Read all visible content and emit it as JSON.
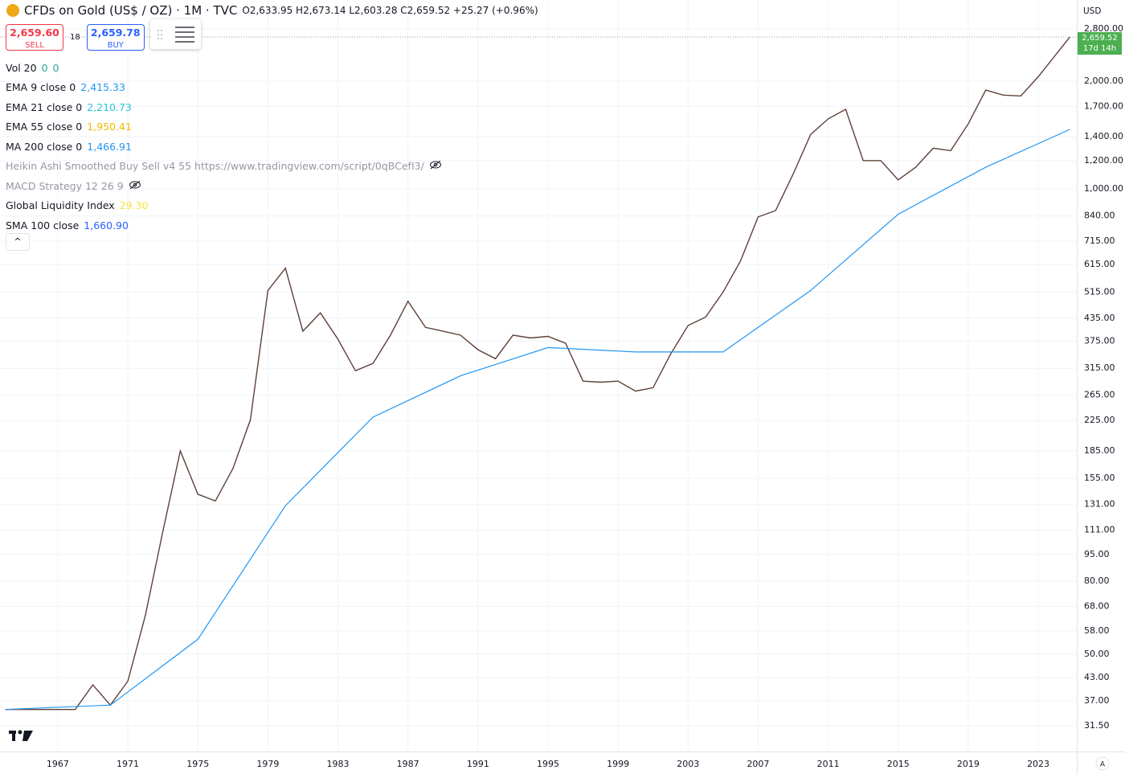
{
  "header": {
    "symbol": "CFDs on Gold (US$ / OZ) · 1M · TVC",
    "ohlc": "O2,633.95 H2,673.14 L2,603.28 C2,659.52 +25.27 (+0.96%)"
  },
  "trade": {
    "sell_price": "2,659.60",
    "sell": "SELL",
    "spread": "18",
    "buy_price": "2,659.78",
    "buy": "BUY"
  },
  "indicators": [
    {
      "name": "Vol 20",
      "values": [
        "0",
        "0"
      ],
      "color": "#26a69a"
    },
    {
      "name": "EMA 9 close 0",
      "values": [
        "2,415.33"
      ],
      "color": "#2196f3"
    },
    {
      "name": "EMA 21 close 0",
      "values": [
        "2,210.73"
      ],
      "color": "#26c6da"
    },
    {
      "name": "EMA 55 close 0",
      "values": [
        "1,950.41"
      ],
      "color": "#f5b800"
    },
    {
      "name": "MA 200 close 0",
      "values": [
        "1,466.91"
      ],
      "color": "#2196f3"
    },
    {
      "name": "Heikin Ashi Smoothed Buy Sell v4 55 https://www.tradingview.com/script/0qBCefI3/",
      "hidden": true
    },
    {
      "name": "MACD Strategy 12 26 9",
      "hidden": true
    },
    {
      "name": "Global Liquidity Index",
      "values": [
        "29.30"
      ],
      "color": "#f5e33d"
    },
    {
      "name": "SMA 100 close",
      "values": [
        "1,660.90"
      ],
      "color": "#2962ff"
    }
  ],
  "price_axis": {
    "currency": "USD",
    "last_label": "2,659.52",
    "countdown": "17d 14h"
  },
  "chart_data": {
    "type": "line",
    "log_scale": true,
    "grid": true,
    "xlim": [
      1963.7,
      2025.2
    ],
    "ylim": [
      26.7,
      3376
    ],
    "xticks": [
      1967,
      1971,
      1975,
      1979,
      1983,
      1987,
      1991,
      1995,
      1999,
      2003,
      2007,
      2011,
      2015,
      2019,
      2023
    ],
    "yticks": [
      {
        "value": 2800,
        "label": "2,800.00"
      },
      {
        "value": 2000,
        "label": "2,000.00"
      },
      {
        "value": 1700,
        "label": "1,700.00"
      },
      {
        "value": 1400,
        "label": "1,400.00"
      },
      {
        "value": 1200,
        "label": "1,200.00"
      },
      {
        "value": 1000,
        "label": "1,000.00"
      },
      {
        "value": 840,
        "label": "840.00"
      },
      {
        "value": 715,
        "label": "715.00"
      },
      {
        "value": 615,
        "label": "615.00"
      },
      {
        "value": 515,
        "label": "515.00"
      },
      {
        "value": 435,
        "label": "435.00"
      },
      {
        "value": 375,
        "label": "375.00"
      },
      {
        "value": 315,
        "label": "315.00"
      },
      {
        "value": 265,
        "label": "265.00"
      },
      {
        "value": 225,
        "label": "225.00"
      },
      {
        "value": 185,
        "label": "185.00"
      },
      {
        "value": 155,
        "label": "155.00"
      },
      {
        "value": 131,
        "label": "131.00"
      },
      {
        "value": 111,
        "label": "111.00"
      },
      {
        "value": 95,
        "label": "95.00"
      },
      {
        "value": 80,
        "label": "80.00"
      },
      {
        "value": 68,
        "label": "68.00"
      },
      {
        "value": 58,
        "label": "58.00"
      },
      {
        "value": 50,
        "label": "50.00"
      },
      {
        "value": 43,
        "label": "43.00"
      },
      {
        "value": 37,
        "label": "37.00"
      },
      {
        "value": 31.5,
        "label": "31.50"
      }
    ],
    "series": [
      {
        "color": "#5d4037",
        "x": [
          1964,
          1968,
          1969,
          1970,
          1971,
          1972,
          1973,
          1974,
          1975,
          1976,
          1977,
          1978,
          1979,
          1980,
          1981,
          1982,
          1983,
          1984,
          1985,
          1986,
          1987,
          1988,
          1989,
          1990,
          1991,
          1992,
          1993,
          1994,
          1995,
          1996,
          1997,
          1998,
          1999,
          2000,
          2001,
          2002,
          2003,
          2004,
          2005,
          2006,
          2007,
          2008,
          2009,
          2010,
          2011,
          2012,
          2013,
          2014,
          2015,
          2016,
          2017,
          2018,
          2019,
          2020,
          2021,
          2022,
          2023,
          2024.8
        ],
        "values": [
          35,
          35,
          41,
          36,
          42,
          64,
          110,
          185,
          140,
          134,
          165,
          226,
          520,
          600,
          400,
          450,
          380,
          310,
          325,
          390,
          485,
          410,
          400,
          390,
          355,
          335,
          390,
          383,
          387,
          370,
          290,
          288,
          290,
          272,
          278,
          345,
          415,
          438,
          515,
          630,
          835,
          870,
          1100,
          1420,
          1570,
          1670,
          1200,
          1200,
          1060,
          1150,
          1300,
          1280,
          1520,
          1890,
          1830,
          1820,
          2060,
          2659.52
        ]
      },
      {
        "color": "#2196f3",
        "x": [
          1964,
          1970,
          1975,
          1980,
          1985,
          1990,
          1995,
          2000,
          2005,
          2010,
          2015,
          2020,
          2024.8
        ],
        "values": [
          35,
          36,
          55,
          130,
          230,
          300,
          360,
          350,
          350,
          520,
          850,
          1150,
          1466.91
        ]
      }
    ]
  }
}
